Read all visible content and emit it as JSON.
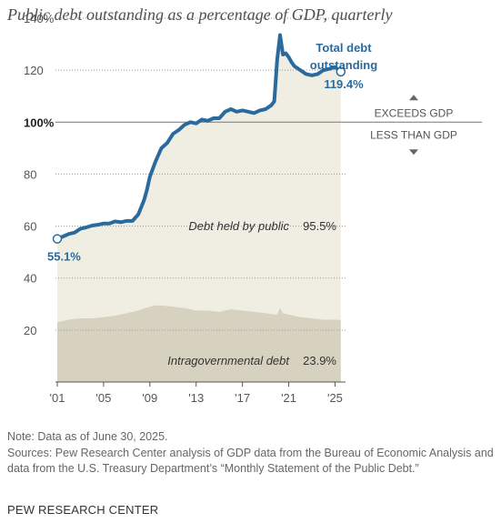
{
  "header": {
    "title": "Public debt outstanding as a percentage of GDP, quarterly"
  },
  "chart_data": {
    "type": "area",
    "title": "Public debt outstanding as a percentage of GDP, quarterly",
    "xlabel": "",
    "ylabel": "",
    "xlim": [
      2001,
      2025.75
    ],
    "ylim": [
      0,
      140
    ],
    "x_ticks": [
      2001,
      2005,
      2009,
      2013,
      2017,
      2021,
      2025
    ],
    "x_tick_labels": [
      "'01",
      "'05",
      "'09",
      "'13",
      "'17",
      "'21",
      "'25"
    ],
    "y_ticks": [
      20,
      40,
      60,
      80,
      100,
      120,
      140
    ],
    "y_tick_labels": [
      "20",
      "40",
      "60",
      "80",
      "100%",
      "120",
      "140%"
    ],
    "grid": "horizontal dotted",
    "reference_line": {
      "value": 100,
      "above_label": "EXCEEDS GDP",
      "below_label": "LESS THAN GDP"
    },
    "series": [
      {
        "name": "Total debt outstanding",
        "end_label": "119.4%",
        "start_label": "55.1%",
        "color": "#2a6a9e",
        "x": [
          2001.0,
          2001.5,
          2002.0,
          2002.5,
          2003.0,
          2003.5,
          2004.0,
          2004.5,
          2005.0,
          2005.5,
          2006.0,
          2006.5,
          2007.0,
          2007.5,
          2008.0,
          2008.5,
          2008.75,
          2009.0,
          2009.25,
          2009.5,
          2010.0,
          2010.5,
          2011.0,
          2011.5,
          2012.0,
          2012.5,
          2013.0,
          2013.5,
          2014.0,
          2014.5,
          2015.0,
          2015.5,
          2016.0,
          2016.5,
          2017.0,
          2017.5,
          2018.0,
          2018.5,
          2019.0,
          2019.5,
          2019.75,
          2020.0,
          2020.25,
          2020.5,
          2020.75,
          2021.0,
          2021.25,
          2021.5,
          2022.0,
          2022.5,
          2023.0,
          2023.5,
          2024.0,
          2024.5,
          2025.0,
          2025.5
        ],
        "values": [
          55.1,
          56.0,
          57.0,
          57.5,
          59.0,
          59.5,
          60.2,
          60.5,
          61.0,
          61.0,
          61.8,
          61.5,
          62.0,
          62.0,
          64.5,
          70.0,
          74.0,
          79.0,
          82.0,
          85.0,
          90.0,
          92.0,
          95.5,
          97.0,
          99.0,
          100.0,
          99.5,
          101.0,
          100.5,
          101.5,
          101.5,
          104.0,
          105.0,
          104.0,
          104.5,
          104.0,
          103.5,
          104.5,
          105.0,
          106.5,
          108.0,
          124.0,
          133.5,
          126.0,
          126.5,
          125.0,
          123.0,
          121.5,
          120.0,
          118.5,
          118.0,
          118.5,
          120.0,
          120.5,
          121.2,
          119.4
        ]
      },
      {
        "name": "Debt held by public",
        "end_label": "95.5%",
        "color": "#f0eee2"
      },
      {
        "name": "Intragovernmental debt",
        "end_label": "23.9%",
        "color": "#d6d2bf",
        "x": [
          2001.0,
          2002.0,
          2003.0,
          2004.0,
          2005.0,
          2006.0,
          2007.0,
          2008.0,
          2009.0,
          2009.5,
          2010.0,
          2011.0,
          2012.0,
          2013.0,
          2014.0,
          2015.0,
          2016.0,
          2017.0,
          2018.0,
          2019.0,
          2019.75,
          2020.0,
          2020.25,
          2020.5,
          2021.0,
          2022.0,
          2023.0,
          2024.0,
          2025.0,
          2025.5
        ],
        "values": [
          23.0,
          24.0,
          24.5,
          24.5,
          25.0,
          25.5,
          26.5,
          27.5,
          29.0,
          29.5,
          29.5,
          29.0,
          28.5,
          27.5,
          27.5,
          27.0,
          28.0,
          27.5,
          27.0,
          26.5,
          26.0,
          26.0,
          28.5,
          26.5,
          26.0,
          25.0,
          24.5,
          24.0,
          24.0,
          23.9
        ]
      }
    ]
  },
  "footer": {
    "note": "Note: Data as of June 30, 2025.",
    "sources": "Sources: Pew Research Center analysis of GDP data from the Bureau of Economic Analysis and data from the U.S. Treasury Department’s “Monthly Statement of the Public Debt.”",
    "brand": "PEW RESEARCH CENTER"
  }
}
